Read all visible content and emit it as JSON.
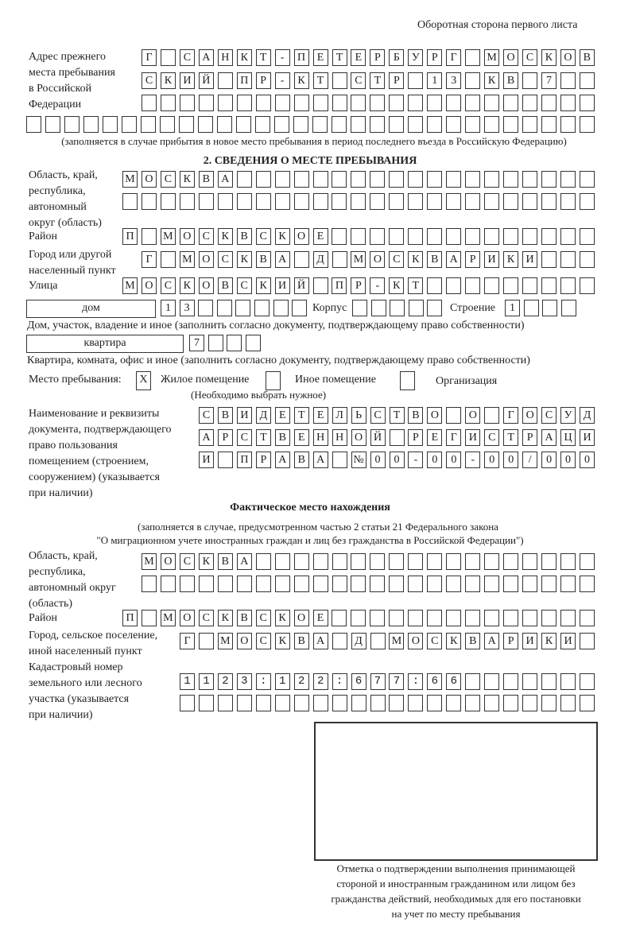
{
  "header": "Оборотная сторона первого листа",
  "prev_address": {
    "label": [
      "Адрес прежнего",
      "места пребывания",
      "в Российской",
      "Федерации"
    ],
    "rows": [
      "Г САНКТ-ПЕТЕРБУРГ МОСКОВ",
      "СКИЙ ПР-КТ СТР 13 КВ 7  ",
      "                        ",
      "                              "
    ],
    "note": "(заполняется в случае прибытия в новое место пребывания в период последнего въезда в Российскую Федерацию)"
  },
  "section2": {
    "title": "2. СВЕДЕНИЯ О МЕСТЕ ПРЕБЫВАНИЯ",
    "region_label": [
      "Область, край,",
      "республика,",
      "автономный",
      "округ (область)"
    ],
    "region_rows": [
      "МОСКВА                   ",
      "                         "
    ],
    "district_label": "Район",
    "district": "П МОСКВСКОЕ              ",
    "city_label": [
      "Город или другой",
      "населенный пункт"
    ],
    "city": "Г МОСКВА Д МОСКВАРИКИ   ",
    "street_label": "Улица",
    "street": "МОСКОВСКИЙ ПР-КТ         ",
    "house_type": "дом",
    "house": "13      ",
    "korpus_label": "Корпус",
    "korpus": "     ",
    "building_label": "Строение",
    "building": "1   ",
    "house_note": "Дом, участок, владение и иное (заполнить согласно документу, подтверждающему право собственности)",
    "apt_type": "квартира",
    "apt": "7   ",
    "apt_note": "Квартира, комната, офис и иное (заполнить согласно документу, подтверждающему право собственности)",
    "stay_label": "Место пребывания:",
    "stay_options": [
      {
        "label": "Жилое помещение",
        "mark": "X"
      },
      {
        "label": "Иное помещение",
        "mark": ""
      },
      {
        "label": "Организация",
        "mark": ""
      }
    ],
    "stay_note": "(Необходимо выбрать нужное)",
    "doc_label": [
      "Наименование и реквизиты",
      "документа, подтверждающего",
      "право пользования",
      "помещением (строением,",
      "сооружением) (указывается",
      "при наличии)"
    ],
    "doc_rows": [
      "СВИДЕТЕЛЬСТВО О ГОСУД",
      "АРСТВЕННОЙ РЕГИСТРАЦИ",
      "И ПРАВА №00-00-00/000"
    ]
  },
  "actual": {
    "title": "Фактическое место нахождения",
    "note": [
      "(заполняется в случае, предусмотренном частью 2 статьи 21 Федерального закона",
      "\"О миграционном учете иностранных граждан и лиц без гражданства в Российской Федерации\")"
    ],
    "region_label": [
      "Область, край,",
      "республика,",
      "автономный округ",
      "(область)"
    ],
    "region_rows": [
      "МОСКВА                  ",
      "                        "
    ],
    "district_label": "Район",
    "district": "П МОСКВСКОЕ              ",
    "city_label": [
      "Город, сельское поселение,",
      "иной населенный пункт"
    ],
    "city": "Г МОСКВА Д МОСКВАРИКИ ",
    "cadastral_label": [
      "Кадастровый номер",
      "земельного или лесного",
      "участка (указывается",
      "при наличии)"
    ],
    "cadastral_rows": [
      "1123:122:677:66       ",
      "                      "
    ]
  },
  "stamp_caption": [
    "Отметка о подтверждении выполнения принимающей",
    "стороной и иностранным гражданином или лицом без",
    "гражданства действий, необходимых для его постановки",
    "на учет по месту пребывания"
  ]
}
